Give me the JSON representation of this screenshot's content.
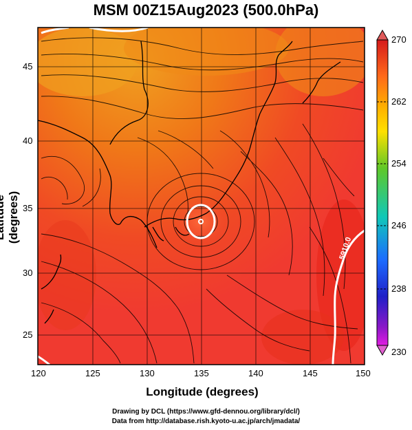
{
  "title": "MSM 00Z15Aug2023 (500.0hPa)",
  "x_axis": {
    "label": "Longitude (degrees)",
    "ticks": [
      "120",
      "125",
      "130",
      "135",
      "140",
      "145",
      "150"
    ]
  },
  "y_axis": {
    "label": "Latitude  (degrees)",
    "ticks": [
      "25",
      "30",
      "35",
      "40",
      "45"
    ]
  },
  "colorbar": {
    "ticks": [
      "270",
      "262",
      "254",
      "246",
      "238",
      "230"
    ],
    "colors": [
      "#d61a1a",
      "#ff6a1a",
      "#ffb000",
      "#ffe000",
      "#60c828",
      "#10c8b8",
      "#1c6cff",
      "#2020c8",
      "#8a18c8",
      "#e01ce0"
    ]
  },
  "contour_label": "5910.0",
  "credits": {
    "line1": "Drawing by DCL (https://www.gfd-dennou.org/library/dcl/)",
    "line2": "Data from http://database.rish.kyoto-u.ac.jp/arch/jmadata/"
  },
  "colors": {
    "field_hot": "#f04020",
    "field_warm": "#f07818",
    "field_orange": "#f0a020"
  }
}
